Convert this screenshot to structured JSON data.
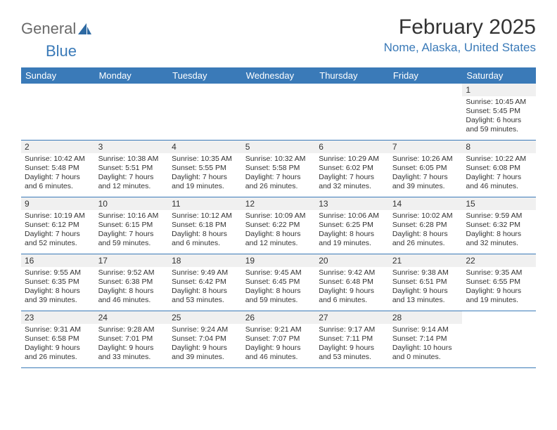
{
  "logo": {
    "text1": "General",
    "text2": "Blue"
  },
  "title": "February 2025",
  "location": "Nome, Alaska, United States",
  "colors": {
    "header_bg": "#3a7ab8",
    "header_text": "#ffffff",
    "border": "#3a7ab8",
    "daynum_bg": "#f0f0f0",
    "text": "#333333",
    "logo_gray": "#6a6a6a",
    "logo_blue": "#3a7ab8"
  },
  "weekdays": [
    "Sunday",
    "Monday",
    "Tuesday",
    "Wednesday",
    "Thursday",
    "Friday",
    "Saturday"
  ],
  "weeks": [
    [
      null,
      null,
      null,
      null,
      null,
      null,
      {
        "n": "1",
        "sunrise": "Sunrise: 10:45 AM",
        "sunset": "Sunset: 5:45 PM",
        "daylight1": "Daylight: 6 hours",
        "daylight2": "and 59 minutes."
      }
    ],
    [
      {
        "n": "2",
        "sunrise": "Sunrise: 10:42 AM",
        "sunset": "Sunset: 5:48 PM",
        "daylight1": "Daylight: 7 hours",
        "daylight2": "and 6 minutes."
      },
      {
        "n": "3",
        "sunrise": "Sunrise: 10:38 AM",
        "sunset": "Sunset: 5:51 PM",
        "daylight1": "Daylight: 7 hours",
        "daylight2": "and 12 minutes."
      },
      {
        "n": "4",
        "sunrise": "Sunrise: 10:35 AM",
        "sunset": "Sunset: 5:55 PM",
        "daylight1": "Daylight: 7 hours",
        "daylight2": "and 19 minutes."
      },
      {
        "n": "5",
        "sunrise": "Sunrise: 10:32 AM",
        "sunset": "Sunset: 5:58 PM",
        "daylight1": "Daylight: 7 hours",
        "daylight2": "and 26 minutes."
      },
      {
        "n": "6",
        "sunrise": "Sunrise: 10:29 AM",
        "sunset": "Sunset: 6:02 PM",
        "daylight1": "Daylight: 7 hours",
        "daylight2": "and 32 minutes."
      },
      {
        "n": "7",
        "sunrise": "Sunrise: 10:26 AM",
        "sunset": "Sunset: 6:05 PM",
        "daylight1": "Daylight: 7 hours",
        "daylight2": "and 39 minutes."
      },
      {
        "n": "8",
        "sunrise": "Sunrise: 10:22 AM",
        "sunset": "Sunset: 6:08 PM",
        "daylight1": "Daylight: 7 hours",
        "daylight2": "and 46 minutes."
      }
    ],
    [
      {
        "n": "9",
        "sunrise": "Sunrise: 10:19 AM",
        "sunset": "Sunset: 6:12 PM",
        "daylight1": "Daylight: 7 hours",
        "daylight2": "and 52 minutes."
      },
      {
        "n": "10",
        "sunrise": "Sunrise: 10:16 AM",
        "sunset": "Sunset: 6:15 PM",
        "daylight1": "Daylight: 7 hours",
        "daylight2": "and 59 minutes."
      },
      {
        "n": "11",
        "sunrise": "Sunrise: 10:12 AM",
        "sunset": "Sunset: 6:18 PM",
        "daylight1": "Daylight: 8 hours",
        "daylight2": "and 6 minutes."
      },
      {
        "n": "12",
        "sunrise": "Sunrise: 10:09 AM",
        "sunset": "Sunset: 6:22 PM",
        "daylight1": "Daylight: 8 hours",
        "daylight2": "and 12 minutes."
      },
      {
        "n": "13",
        "sunrise": "Sunrise: 10:06 AM",
        "sunset": "Sunset: 6:25 PM",
        "daylight1": "Daylight: 8 hours",
        "daylight2": "and 19 minutes."
      },
      {
        "n": "14",
        "sunrise": "Sunrise: 10:02 AM",
        "sunset": "Sunset: 6:28 PM",
        "daylight1": "Daylight: 8 hours",
        "daylight2": "and 26 minutes."
      },
      {
        "n": "15",
        "sunrise": "Sunrise: 9:59 AM",
        "sunset": "Sunset: 6:32 PM",
        "daylight1": "Daylight: 8 hours",
        "daylight2": "and 32 minutes."
      }
    ],
    [
      {
        "n": "16",
        "sunrise": "Sunrise: 9:55 AM",
        "sunset": "Sunset: 6:35 PM",
        "daylight1": "Daylight: 8 hours",
        "daylight2": "and 39 minutes."
      },
      {
        "n": "17",
        "sunrise": "Sunrise: 9:52 AM",
        "sunset": "Sunset: 6:38 PM",
        "daylight1": "Daylight: 8 hours",
        "daylight2": "and 46 minutes."
      },
      {
        "n": "18",
        "sunrise": "Sunrise: 9:49 AM",
        "sunset": "Sunset: 6:42 PM",
        "daylight1": "Daylight: 8 hours",
        "daylight2": "and 53 minutes."
      },
      {
        "n": "19",
        "sunrise": "Sunrise: 9:45 AM",
        "sunset": "Sunset: 6:45 PM",
        "daylight1": "Daylight: 8 hours",
        "daylight2": "and 59 minutes."
      },
      {
        "n": "20",
        "sunrise": "Sunrise: 9:42 AM",
        "sunset": "Sunset: 6:48 PM",
        "daylight1": "Daylight: 9 hours",
        "daylight2": "and 6 minutes."
      },
      {
        "n": "21",
        "sunrise": "Sunrise: 9:38 AM",
        "sunset": "Sunset: 6:51 PM",
        "daylight1": "Daylight: 9 hours",
        "daylight2": "and 13 minutes."
      },
      {
        "n": "22",
        "sunrise": "Sunrise: 9:35 AM",
        "sunset": "Sunset: 6:55 PM",
        "daylight1": "Daylight: 9 hours",
        "daylight2": "and 19 minutes."
      }
    ],
    [
      {
        "n": "23",
        "sunrise": "Sunrise: 9:31 AM",
        "sunset": "Sunset: 6:58 PM",
        "daylight1": "Daylight: 9 hours",
        "daylight2": "and 26 minutes."
      },
      {
        "n": "24",
        "sunrise": "Sunrise: 9:28 AM",
        "sunset": "Sunset: 7:01 PM",
        "daylight1": "Daylight: 9 hours",
        "daylight2": "and 33 minutes."
      },
      {
        "n": "25",
        "sunrise": "Sunrise: 9:24 AM",
        "sunset": "Sunset: 7:04 PM",
        "daylight1": "Daylight: 9 hours",
        "daylight2": "and 39 minutes."
      },
      {
        "n": "26",
        "sunrise": "Sunrise: 9:21 AM",
        "sunset": "Sunset: 7:07 PM",
        "daylight1": "Daylight: 9 hours",
        "daylight2": "and 46 minutes."
      },
      {
        "n": "27",
        "sunrise": "Sunrise: 9:17 AM",
        "sunset": "Sunset: 7:11 PM",
        "daylight1": "Daylight: 9 hours",
        "daylight2": "and 53 minutes."
      },
      {
        "n": "28",
        "sunrise": "Sunrise: 9:14 AM",
        "sunset": "Sunset: 7:14 PM",
        "daylight1": "Daylight: 10 hours",
        "daylight2": "and 0 minutes."
      },
      null
    ]
  ]
}
